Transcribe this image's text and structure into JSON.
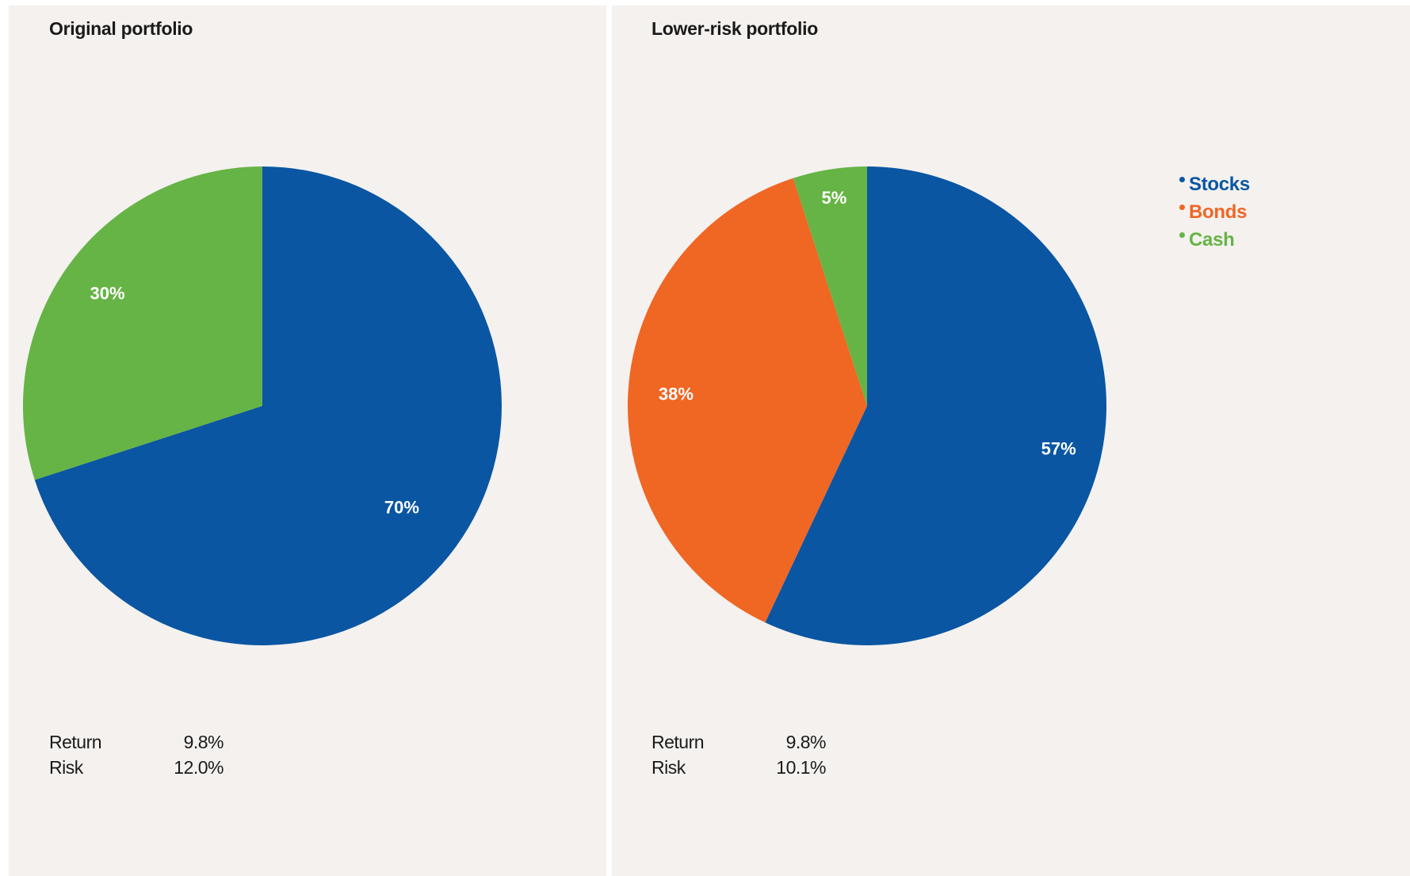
{
  "colors": {
    "stocks": "#0a56a2",
    "bonds": "#f06623",
    "cash": "#66b445"
  },
  "legend": [
    {
      "label": "Stocks",
      "color": "#0a56a2"
    },
    {
      "label": "Bonds",
      "color": "#f06623"
    },
    {
      "label": "Cash",
      "color": "#66b445"
    }
  ],
  "panels": {
    "left": {
      "title": "Original portfolio",
      "return_label": "Return",
      "return_value": "9.8%",
      "risk_label": "Risk",
      "risk_value": "12.0%"
    },
    "right": {
      "title": "Lower-risk portfolio",
      "return_label": "Return",
      "return_value": "9.8%",
      "risk_label": "Risk",
      "risk_value": "10.1%"
    }
  },
  "chart_data": [
    {
      "type": "pie",
      "title": "Original portfolio",
      "slices": [
        {
          "name": "Stocks",
          "value": 70,
          "label": "70%",
          "color": "#0a56a2"
        },
        {
          "name": "Cash",
          "value": 30,
          "label": "30%",
          "color": "#66b445"
        }
      ]
    },
    {
      "type": "pie",
      "title": "Lower-risk portfolio",
      "slices": [
        {
          "name": "Stocks",
          "value": 57,
          "label": "57%",
          "color": "#0a56a2"
        },
        {
          "name": "Bonds",
          "value": 38,
          "label": "38%",
          "color": "#f06623"
        },
        {
          "name": "Cash",
          "value": 5,
          "label": "5%",
          "color": "#66b445"
        }
      ],
      "legend_position": "top-right"
    }
  ]
}
